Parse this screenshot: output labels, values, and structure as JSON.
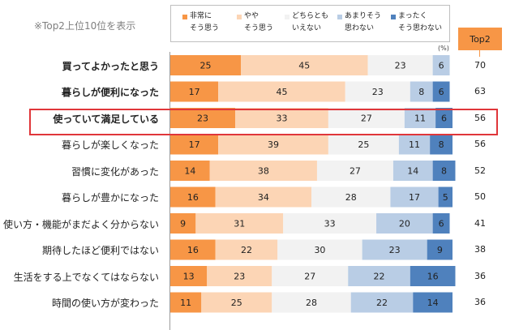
{
  "note": "※Top2上位10位を表示",
  "unit": "(%)",
  "top2_header": "Top2",
  "legend": [
    {
      "label": "非常に\nそう思う",
      "color": "#f79646"
    },
    {
      "label": "やや\nそう思う",
      "color": "#fcd5b5"
    },
    {
      "label": "どちらとも\nいえない",
      "color": "#f2f2f2"
    },
    {
      "label": "あまりそう\n思わない",
      "color": "#b9cde5"
    },
    {
      "label": "まったく\nそう思わない",
      "color": "#4f81bd"
    }
  ],
  "chart_data": {
    "type": "bar",
    "stacked": "horizontal-100",
    "categories": [
      "買ってよかったと思う",
      "暮らしが便利になった",
      "使っていて満足している",
      "暮らしが楽しくなった",
      "習慣に変化があった",
      "暮らしが豊かになった",
      "使い方・機能がまだよく分からない",
      "期待したほど便利ではない",
      "生活をする上でなくてはならない",
      "時間の使い方が変わった"
    ],
    "series": [
      {
        "name": "非常に そう思う",
        "values": [
          25,
          17,
          23,
          17,
          14,
          16,
          9,
          16,
          13,
          11
        ]
      },
      {
        "name": "やや そう思う",
        "values": [
          45,
          45,
          33,
          39,
          38,
          34,
          31,
          22,
          23,
          25
        ]
      },
      {
        "name": "どちらとも いえない",
        "values": [
          23,
          23,
          27,
          25,
          27,
          28,
          33,
          30,
          27,
          28
        ]
      },
      {
        "name": "あまりそう 思わない",
        "values": [
          6,
          8,
          11,
          11,
          14,
          17,
          20,
          23,
          22,
          22
        ]
      },
      {
        "name": "まったく そう思わない",
        "values": [
          0,
          6,
          6,
          8,
          8,
          5,
          6,
          9,
          16,
          14
        ]
      }
    ],
    "bar_labels": [
      [
        "25",
        "45",
        "23",
        "6",
        ""
      ],
      [
        "17",
        "45",
        "23",
        "8",
        "6"
      ],
      [
        "23",
        "33",
        "27",
        "11",
        "6"
      ],
      [
        "17",
        "39",
        "25",
        "11",
        "8"
      ],
      [
        "14",
        "38",
        "27",
        "14",
        "8"
      ],
      [
        "16",
        "34",
        "28",
        "17",
        "5"
      ],
      [
        "9",
        "31",
        "33",
        "20",
        "6"
      ],
      [
        "16",
        "22",
        "30",
        "23",
        "9"
      ],
      [
        "13",
        "23",
        "27",
        "22",
        "16"
      ],
      [
        "11",
        "25",
        "28",
        "22",
        "14"
      ]
    ],
    "top2": [
      70,
      63,
      56,
      56,
      52,
      50,
      41,
      38,
      36,
      36
    ],
    "highlighted_category": "使っていて満足している",
    "bold_categories": [
      "買ってよかったと思う",
      "暮らしが便利になった",
      "使っていて満足している"
    ],
    "xlim": [
      0,
      100
    ]
  }
}
